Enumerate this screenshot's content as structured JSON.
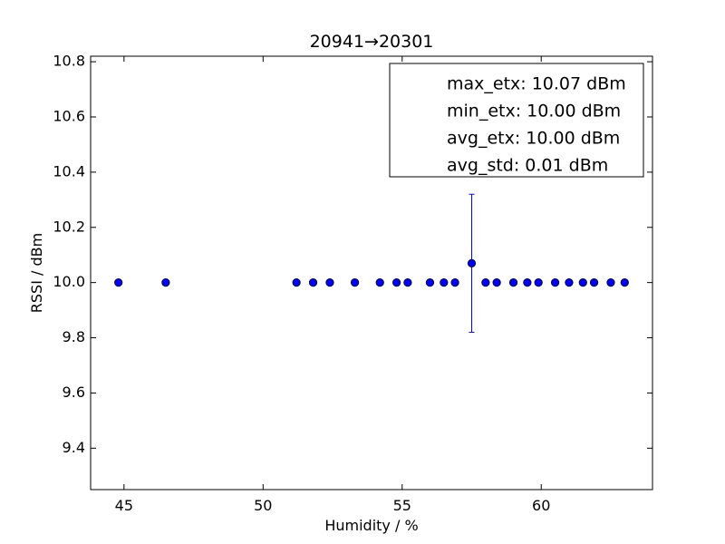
{
  "chart_data": {
    "type": "scatter",
    "title": "20941→20301",
    "xlabel": "Humidity / %",
    "ylabel": "RSSI / dBm",
    "xlim": [
      43.8,
      64.0
    ],
    "ylim": [
      9.25,
      10.82
    ],
    "xticks": [
      45,
      50,
      55,
      60
    ],
    "xtick_labels": [
      "45",
      "50",
      "55",
      "60"
    ],
    "yticks": [
      9.4,
      9.6,
      9.8,
      10.0,
      10.2,
      10.4,
      10.6,
      10.8
    ],
    "ytick_labels": [
      "9.4",
      "9.6",
      "9.8",
      "10.0",
      "10.2",
      "10.4",
      "10.6",
      "10.8"
    ],
    "grid": false,
    "marker_color": "#0000ff",
    "errorbar_color": "#0000ff",
    "series": [
      {
        "x": [
          44.8,
          46.5,
          51.2,
          51.8,
          52.4,
          53.3,
          54.2,
          54.8,
          55.2,
          56.0,
          56.5,
          56.9,
          57.5,
          58.0,
          58.4,
          59.0,
          59.5,
          59.9,
          60.5,
          61.0,
          61.5,
          61.9,
          62.5,
          63.0
        ],
        "y": [
          10.0,
          10.0,
          10.0,
          10.0,
          10.0,
          10.0,
          10.0,
          10.0,
          10.0,
          10.0,
          10.0,
          10.0,
          10.07,
          10.0,
          10.0,
          10.0,
          10.0,
          10.0,
          10.0,
          10.0,
          10.0,
          10.0,
          10.0,
          10.0
        ],
        "yerr": [
          0,
          0,
          0,
          0,
          0,
          0,
          0,
          0,
          0,
          0,
          0,
          0,
          0.25,
          0,
          0,
          0,
          0,
          0,
          0,
          0,
          0,
          0,
          0,
          0
        ]
      }
    ],
    "legend": {
      "placement": "top-right",
      "entries": [
        "max_etx: 10.07 dBm",
        "min_etx: 10.00 dBm",
        "avg_etx: 10.00 dBm",
        "avg_std: 0.01 dBm"
      ]
    }
  }
}
